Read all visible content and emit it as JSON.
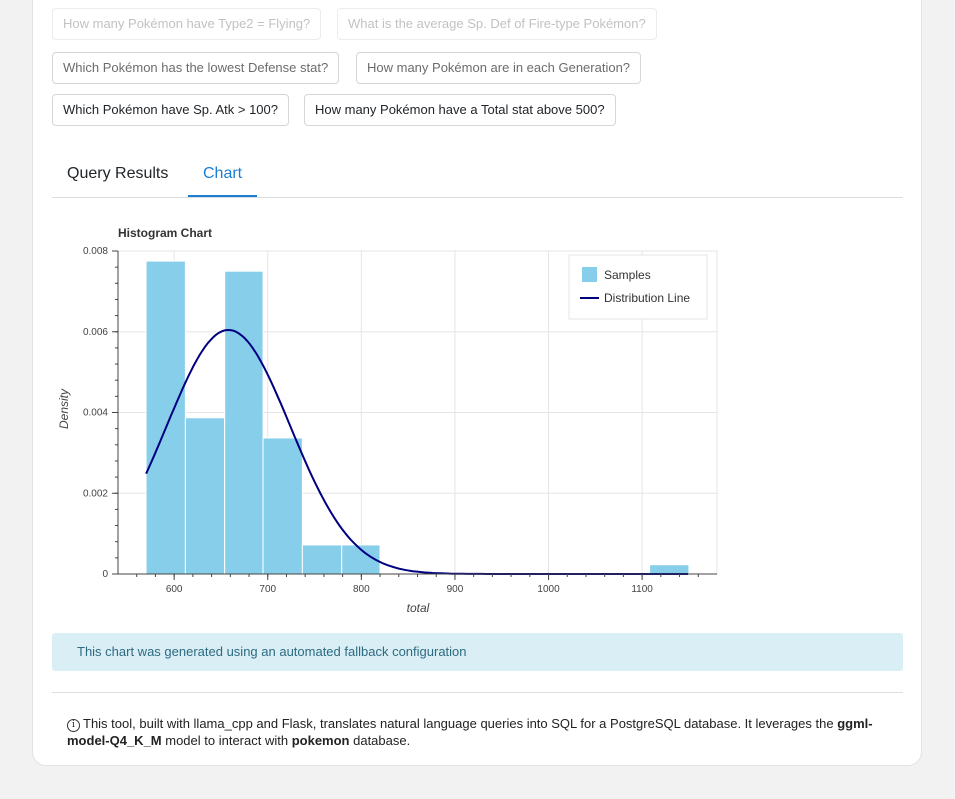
{
  "suggestions": {
    "row0": [
      "How many Pokémon have Type2 = Flying?",
      "What is the average Sp. Def of Fire-type Pokémon?"
    ],
    "row1": [
      "Which Pokémon has the lowest Defense stat?",
      "How many Pokémon are in each Generation?"
    ],
    "row2": [
      "Which Pokémon have Sp. Atk > 100?",
      "How many Pokémon have a Total stat above 500?"
    ]
  },
  "tabs": {
    "results": "Query Results",
    "chart": "Chart",
    "active": "Chart"
  },
  "colors": {
    "accent": "#1a7fd4",
    "bar": "#87ceeb",
    "line": "#000080"
  },
  "chart_data": {
    "type": "bar",
    "title": "Histogram Chart",
    "xlabel": "total",
    "ylabel": "Density",
    "xlim": [
      540,
      1180
    ],
    "ylim": [
      0,
      0.008
    ],
    "x_ticks": [
      "600",
      "700",
      "800",
      "900",
      "1000",
      "1100"
    ],
    "y_ticks": [
      "0",
      "0.002",
      "0.004",
      "0.006",
      "0.008"
    ],
    "grid": true,
    "legend_position": "top-right",
    "bins": [
      {
        "x0": 570,
        "x1": 612,
        "density": 0.00775
      },
      {
        "x0": 612,
        "x1": 654,
        "density": 0.00387
      },
      {
        "x0": 654,
        "x1": 695,
        "density": 0.0075
      },
      {
        "x0": 695,
        "x1": 737,
        "density": 0.00337
      },
      {
        "x0": 737,
        "x1": 779,
        "density": 0.00072
      },
      {
        "x0": 779,
        "x1": 820,
        "density": 0.00072
      },
      {
        "x0": 1108,
        "x1": 1150,
        "density": 0.00023
      }
    ],
    "series": [
      {
        "name": "Samples",
        "kind": "bar"
      },
      {
        "name": "Distribution Line",
        "kind": "line",
        "mean": 658,
        "std": 66,
        "x_range": [
          570,
          1150
        ]
      }
    ]
  },
  "alert": {
    "text": "This chart was generated using an automated fallback configuration"
  },
  "footer": {
    "info_icon": "i",
    "part1": "This tool, built with llama_cpp and Flask, translates natural language queries into SQL for a PostgreSQL database. It leverages the ",
    "model": "ggml-model-Q4_K_M",
    "part2": " model to interact with ",
    "database": "pokemon",
    "part3": " database."
  }
}
